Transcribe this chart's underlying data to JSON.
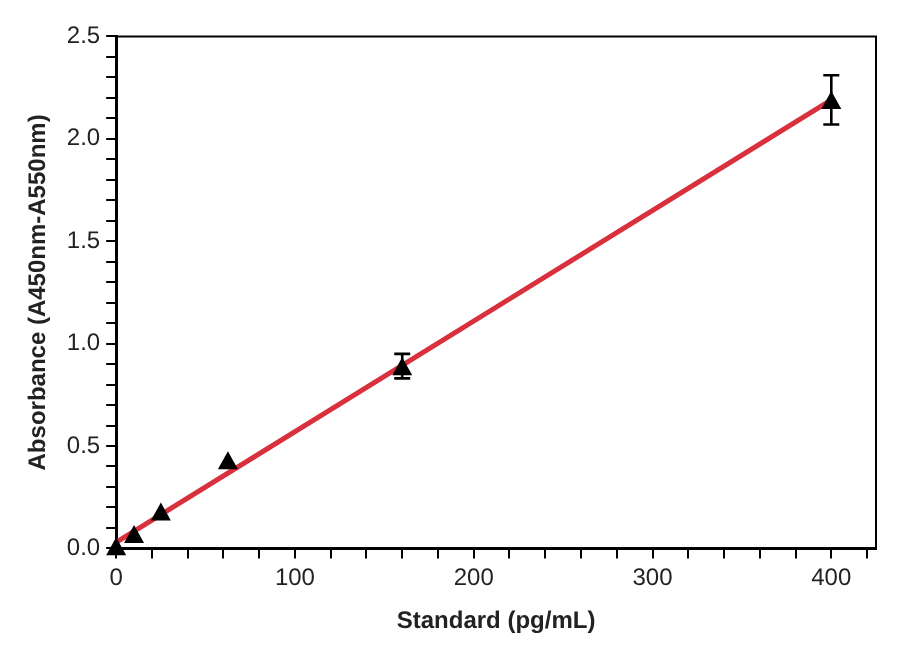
{
  "chart_data": {
    "type": "scatter",
    "xlabel": "Standard (pg/mL)",
    "ylabel": "Absorbance (A450nm-A550nm)",
    "series": [
      {
        "color": "#000000",
        "x": [
          0,
          10,
          25,
          62.5,
          160,
          400
        ],
        "values": [
          0.01,
          0.07,
          0.18,
          0.43,
          0.89,
          2.19
        ],
        "errors": [
          null,
          null,
          null,
          null,
          0.06,
          0.12
        ],
        "marker": "triangle"
      },
      {
        "type": "line",
        "color": "#d9303e",
        "x": [
          0,
          400
        ],
        "values": [
          0.03,
          2.19
        ],
        "marker": "none",
        "line_style": "solid"
      }
    ],
    "xlim": [
      0,
      425
    ],
    "xticks": [
      0,
      {
        "value": 20,
        "label": null
      },
      {
        "value": 40,
        "label": null
      },
      {
        "value": 60,
        "label": null
      },
      {
        "value": 80,
        "label": null
      },
      100,
      {
        "value": 120,
        "label": null
      },
      {
        "value": 140,
        "label": null
      },
      {
        "value": 160,
        "label": null
      },
      {
        "value": 180,
        "label": null
      },
      200,
      {
        "value": 220,
        "label": null
      },
      {
        "value": 240,
        "label": null
      },
      {
        "value": 260,
        "label": null
      },
      {
        "value": 280,
        "label": null
      },
      300,
      {
        "value": 320,
        "label": null
      },
      {
        "value": 340,
        "label": null
      },
      {
        "value": 360,
        "label": null
      },
      {
        "value": 380,
        "label": null
      },
      400,
      {
        "value": 420,
        "label": null
      }
    ],
    "ylim": [
      0,
      2.5
    ],
    "yticks": [
      {
        "value": 0,
        "label": "0.0"
      },
      {
        "value": 0.1,
        "label": null
      },
      {
        "value": 0.2,
        "label": null
      },
      {
        "value": 0.3,
        "label": null
      },
      {
        "value": 0.4,
        "label": null
      },
      0.5,
      {
        "value": 0.6,
        "label": null
      },
      {
        "value": 0.7,
        "label": null
      },
      {
        "value": 0.8,
        "label": null
      },
      {
        "value": 0.9,
        "label": null
      },
      {
        "value": 1,
        "label": "1.0"
      },
      {
        "value": 1.1,
        "label": null
      },
      {
        "value": 1.2,
        "label": null
      },
      {
        "value": 1.3,
        "label": null
      },
      {
        "value": 1.4,
        "label": null
      },
      1.5,
      {
        "value": 1.6,
        "label": null
      },
      {
        "value": 1.7,
        "label": null
      },
      {
        "value": 1.8,
        "label": null
      },
      {
        "value": 1.9,
        "label": null
      },
      {
        "value": 2,
        "label": "2.0"
      },
      {
        "value": 2.1,
        "label": null
      },
      {
        "value": 2.2,
        "label": null
      },
      {
        "value": 2.3,
        "label": null
      },
      {
        "value": 2.4,
        "label": null
      },
      2.5
    ],
    "grid": false,
    "legend": false
  }
}
